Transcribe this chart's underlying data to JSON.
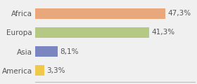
{
  "categories": [
    "Africa",
    "Europa",
    "Asia",
    "America"
  ],
  "values": [
    47.3,
    41.3,
    8.1,
    3.3
  ],
  "labels": [
    "47,3%",
    "41,3%",
    "8,1%",
    "3,3%"
  ],
  "bar_colors": [
    "#e8a87c",
    "#b5c985",
    "#7b86c0",
    "#f0c84a"
  ],
  "background_color": "#f0f0f0",
  "xlim": [
    0,
    58
  ],
  "bar_height": 0.55,
  "label_fontsize": 7.5,
  "tick_fontsize": 7.5,
  "figsize": [
    2.8,
    1.2
  ],
  "dpi": 100
}
